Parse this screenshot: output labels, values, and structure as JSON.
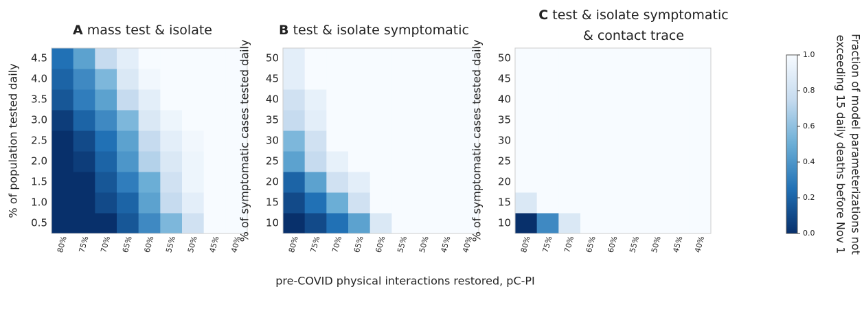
{
  "xlabel": "pre-COVID physical interactions restored, pC-PI",
  "chart_data": [
    {
      "type": "heatmap",
      "panel": "A",
      "title": [
        "mass test & isolate"
      ],
      "ylabel": "% of population tested daily",
      "x": [
        "80%",
        "75%",
        "70%",
        "65%",
        "60%",
        "55%",
        "50%",
        "45%",
        "40%"
      ],
      "y": [
        "0.5",
        "1.0",
        "1.5",
        "2.0",
        "2.5",
        "3.0",
        "3.5",
        "4.0",
        "4.5"
      ],
      "values": [
        [
          0.0,
          0.0,
          0.0,
          0.15,
          0.35,
          0.55,
          0.8,
          1,
          1
        ],
        [
          0.0,
          0.0,
          0.1,
          0.2,
          0.45,
          0.75,
          0.9,
          1,
          1
        ],
        [
          0.0,
          0.0,
          0.15,
          0.3,
          0.5,
          0.8,
          0.95,
          1,
          1
        ],
        [
          0.0,
          0.05,
          0.2,
          0.4,
          0.7,
          0.85,
          0.95,
          1,
          1
        ],
        [
          0.0,
          0.1,
          0.25,
          0.45,
          0.75,
          0.9,
          0.97,
          1,
          1
        ],
        [
          0.05,
          0.2,
          0.35,
          0.55,
          0.85,
          0.95,
          1,
          1,
          1
        ],
        [
          0.15,
          0.3,
          0.45,
          0.75,
          0.9,
          1,
          1,
          1,
          1
        ],
        [
          0.2,
          0.35,
          0.55,
          0.85,
          0.97,
          1,
          1,
          1,
          1
        ],
        [
          0.25,
          0.45,
          0.75,
          0.9,
          1,
          1,
          1,
          1,
          1
        ]
      ]
    },
    {
      "type": "heatmap",
      "panel": "B",
      "title": [
        "test & isolate symptomatic"
      ],
      "ylabel": "% of symptomatic cases tested daily",
      "x": [
        "80%",
        "75%",
        "70%",
        "65%",
        "60%",
        "55%",
        "50%",
        "45%",
        "40%"
      ],
      "y": [
        "10",
        "15",
        "20",
        "25",
        "30",
        "35",
        "40",
        "45",
        "50"
      ],
      "values": [
        [
          0.0,
          0.1,
          0.25,
          0.45,
          0.85,
          1,
          1,
          1,
          1
        ],
        [
          0.1,
          0.25,
          0.5,
          0.8,
          1,
          1,
          1,
          1,
          1
        ],
        [
          0.2,
          0.45,
          0.8,
          0.9,
          1,
          1,
          1,
          1,
          1
        ],
        [
          0.45,
          0.75,
          0.92,
          1,
          1,
          1,
          1,
          1,
          1
        ],
        [
          0.55,
          0.8,
          1,
          1,
          1,
          1,
          1,
          1,
          1
        ],
        [
          0.75,
          0.9,
          1,
          1,
          1,
          1,
          1,
          1,
          1
        ],
        [
          0.8,
          0.92,
          1,
          1,
          1,
          1,
          1,
          1,
          1
        ],
        [
          0.9,
          1,
          1,
          1,
          1,
          1,
          1,
          1,
          1
        ],
        [
          0.9,
          1,
          1,
          1,
          1,
          1,
          1,
          1,
          1
        ]
      ]
    },
    {
      "type": "heatmap",
      "panel": "C",
      "title": [
        "test & isolate symptomatic",
        "& contact trace"
      ],
      "ylabel": "% of symptomatic cases tested daily",
      "x": [
        "80%",
        "75%",
        "70%",
        "65%",
        "60%",
        "55%",
        "50%",
        "45%",
        "40%"
      ],
      "y": [
        "10",
        "15",
        "20",
        "25",
        "30",
        "35",
        "40",
        "45",
        "50"
      ],
      "values": [
        [
          0.0,
          0.35,
          0.85,
          1,
          1,
          1,
          1,
          1,
          1
        ],
        [
          0.85,
          1,
          1,
          1,
          1,
          1,
          1,
          1,
          1
        ],
        [
          1,
          1,
          1,
          1,
          1,
          1,
          1,
          1,
          1
        ],
        [
          1,
          1,
          1,
          1,
          1,
          1,
          1,
          1,
          1
        ],
        [
          1,
          1,
          1,
          1,
          1,
          1,
          1,
          1,
          1
        ],
        [
          1,
          1,
          1,
          1,
          1,
          1,
          1,
          1,
          1
        ],
        [
          1,
          1,
          1,
          1,
          1,
          1,
          1,
          1,
          1
        ],
        [
          1,
          1,
          1,
          1,
          1,
          1,
          1,
          1,
          1
        ],
        [
          1,
          1,
          1,
          1,
          1,
          1,
          1,
          1,
          1
        ]
      ]
    },
    {
      "type": "colorbar",
      "label": [
        "Fraction of model parameterizations not",
        "exceeding 15 daily deaths  before Nov 1"
      ],
      "lim": [
        0,
        1
      ],
      "colors": [
        "#08306b",
        "#2171b5",
        "#6baed6",
        "#c6dbef",
        "#f7fbff"
      ],
      "ticks": [
        {
          "value": 0,
          "label": "0.0"
        },
        0.2,
        0.4,
        0.6,
        0.8,
        {
          "value": 1,
          "label": "1.0"
        }
      ]
    }
  ]
}
